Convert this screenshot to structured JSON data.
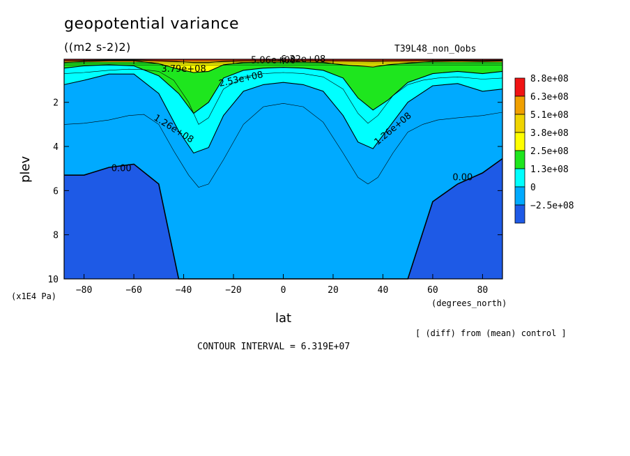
{
  "header": {
    "title": "geopotential variance",
    "units": "((m2 s-2)2)",
    "run": "T39L48_non_Qobs"
  },
  "footer": {
    "diff_note": "[ (diff) from (mean) control ]",
    "contour_interval": "CONTOUR INTERVAL = 6.319E+07"
  },
  "chart_data": {
    "type": "heatmap",
    "title": "geopotential variance",
    "xlabel": "lat",
    "ylabel": "plev",
    "x_unit": "(degrees_north)",
    "y_unit": "(x1E4 Pa)",
    "xlim": [
      -88,
      88
    ],
    "ylim": [
      10,
      0.05
    ],
    "x_ticks": [
      -80,
      -60,
      -40,
      -20,
      0,
      20,
      40,
      60,
      80
    ],
    "y_ticks": [
      2,
      4,
      6,
      8,
      10
    ],
    "contour_interval": 63190000,
    "legend": {
      "placement": "right",
      "levels": [
        "8.8e+08",
        "6.3e+08",
        "5.1e+08",
        "3.8e+08",
        "2.5e+08",
        "1.3e+08",
        "0",
        "-2.5e+08"
      ],
      "colors": [
        "#f01414",
        "#f0a000",
        "#f0d400",
        "#ffff00",
        "#1ee61e",
        "#00ffff",
        "#00aaff",
        "#1e5ae6"
      ]
    },
    "contour_labels": [
      {
        "text": "0.00",
        "lat": -65,
        "plev": 5.0
      },
      {
        "text": "0.00",
        "lat": 72,
        "plev": 5.4
      },
      {
        "text": "1.26e+08",
        "lat": -44,
        "plev": 3.2
      },
      {
        "text": "1.26e+08",
        "lat": 44,
        "plev": 3.2
      },
      {
        "text": "2.53e+08",
        "lat": -17,
        "plev": 0.95
      },
      {
        "text": "3.79e+08",
        "lat": -40,
        "plev": 0.5
      },
      {
        "text": "5.06e+08",
        "lat": -4,
        "plev": 0.1
      },
      {
        "text": "6.32e+08",
        "lat": 8,
        "plev": 0.05
      }
    ],
    "band_boundaries": {
      "lat": [
        -88,
        -80,
        -70,
        -60,
        -50,
        -42,
        -36,
        -30,
        -24,
        -16,
        -8,
        0,
        8,
        16,
        24,
        30,
        36,
        42,
        50,
        60,
        70,
        80,
        88
      ],
      "level_0": [
        5.3,
        5.3,
        4.95,
        4.8,
        5.7,
        10.0,
        10.0,
        10.0,
        10.0,
        10.0,
        10.0,
        10.0,
        10.0,
        10.0,
        10.0,
        10.0,
        10.0,
        10.0,
        10.0,
        6.5,
        5.7,
        5.2,
        4.55
      ],
      "level_1.26e8": [
        1.2,
        1.0,
        0.72,
        0.72,
        1.6,
        3.3,
        4.3,
        4.05,
        2.6,
        1.5,
        1.2,
        1.1,
        1.2,
        1.5,
        2.6,
        3.8,
        4.1,
        3.2,
        2.0,
        1.25,
        1.15,
        1.5,
        1.4
      ],
      "level_2.53e8": [
        0.45,
        0.35,
        0.3,
        0.35,
        0.8,
        1.6,
        2.5,
        2.0,
        0.9,
        0.55,
        0.45,
        0.42,
        0.45,
        0.55,
        0.9,
        1.8,
        2.35,
        1.9,
        1.1,
        0.7,
        0.6,
        0.7,
        0.6
      ],
      "level_3.79e8": [
        0.2,
        0.15,
        0.12,
        0.12,
        0.25,
        0.5,
        0.65,
        0.6,
        0.3,
        0.2,
        0.18,
        0.18,
        0.18,
        0.2,
        0.3,
        0.35,
        0.4,
        0.3,
        0.22,
        0.15,
        0.13,
        0.15,
        0.13
      ],
      "level_5.06e8": [
        0.12,
        0.1,
        0.08,
        0.08,
        0.12,
        0.16,
        0.2,
        0.2,
        0.15,
        0.12,
        0.11,
        0.11,
        0.11,
        0.12,
        0.12,
        0.13,
        0.14,
        0.13,
        0.12,
        0.1,
        0.09,
        0.1,
        0.09
      ]
    },
    "thin_contours": {
      "lat": [
        -88,
        -80,
        -70,
        -62,
        -56,
        -50,
        -44,
        -38,
        -34,
        -30,
        -24,
        -16,
        -8,
        0,
        8,
        16,
        24,
        30,
        34,
        38,
        44,
        50,
        56,
        62,
        70,
        80,
        88
      ],
      "level_6.32e7": [
        3.0,
        2.95,
        2.8,
        2.6,
        2.55,
        3.0,
        4.2,
        5.3,
        5.85,
        5.7,
        4.6,
        3.0,
        2.2,
        2.05,
        2.2,
        2.9,
        4.3,
        5.4,
        5.7,
        5.4,
        4.3,
        3.35,
        3.0,
        2.8,
        2.7,
        2.6,
        2.45
      ],
      "level_1.9e8": [
        0.7,
        0.65,
        0.55,
        0.5,
        0.52,
        0.6,
        1.0,
        2.0,
        3.0,
        2.7,
        1.4,
        0.85,
        0.7,
        0.65,
        0.7,
        0.85,
        1.4,
        2.5,
        2.95,
        2.6,
        1.7,
        1.2,
        1.0,
        0.9,
        0.85,
        0.95,
        0.9
      ]
    }
  }
}
